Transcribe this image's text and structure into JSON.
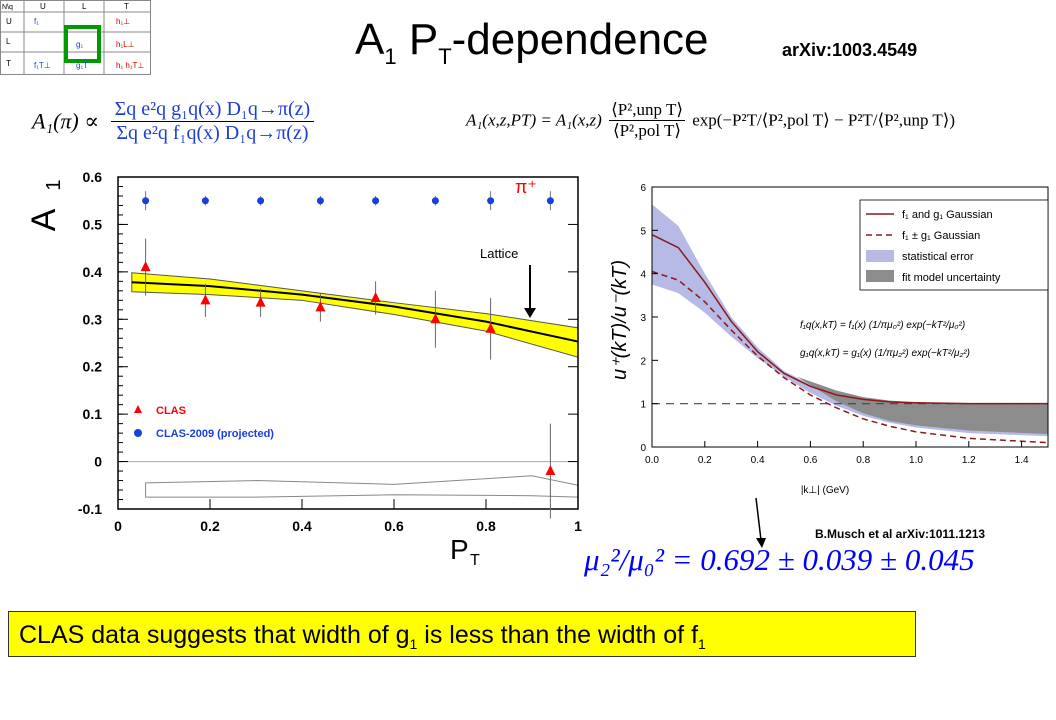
{
  "header": {
    "title_main": "A",
    "title_sub1": "1",
    "title_p": " P",
    "title_sub2": "T",
    "title_rest": "-dependence",
    "arxiv": "arXiv:1003.4549"
  },
  "tmd_grid": {
    "cols": [
      "U",
      "L",
      "T"
    ],
    "rows": [
      "U",
      "L",
      "T"
    ],
    "corner": "N\\q",
    "cells": [
      [
        "f₁",
        "",
        "h₁⊥"
      ],
      [
        "",
        "g₁",
        "h₁L⊥"
      ],
      [
        "f₁T⊥",
        "g₁T",
        "h₁ h₁T⊥"
      ]
    ],
    "highlight_color": "#009900"
  },
  "formulas": {
    "a1_lhs": "A₁(π) ∝",
    "a1_num": "Σq e²q g₁q(x) D₁q→π(z)",
    "a1_den": "Σq e²q f₁q(x) D₁q→π(z)",
    "pt_lhs": "A₁(x,z,PT) = A₁(x,z)",
    "pt_num": "⟨P²,unp T⟩",
    "pt_den": "⟨P²,pol T⟩",
    "pt_exp": "exp(−P²T/⟨P²,pol T⟩ − P²T/⟨P²,unp T⟩)"
  },
  "left_chart_text": {
    "ylabel_main": "A",
    "ylabel_sub": "1",
    "xlabel_main": "P",
    "xlabel_sub": "T",
    "pion": "π⁺",
    "lattice": "Lattice"
  },
  "right_chart_text": {
    "ylabel": "u⁺(kT)/u⁻(kT)",
    "xlabel": "|k⊥| (GeV)",
    "legend": [
      "f₁ and g₁ Gaussian",
      "f₁ ± g₁ Gaussian",
      "statistical error",
      "fit model uncertainty"
    ],
    "eq1": "f₁q(x,kT) = f₁(x) (1/πμ₀²) exp(−kT²/μ₀²)",
    "eq2": "g₁q(x,kT) = g₁(x) (1/πμ₂²) exp(−kT²/μ₂²)",
    "citation": "B.Musch et al arXiv:1011.1213",
    "ratio": "μ₂²/μ₀² = 0.692 ± 0.039 ± 0.045"
  },
  "conclusion": {
    "text1": "CLAS data suggests that width of g",
    "sub1": "1",
    "text2": " is less than the width of f",
    "sub2": "1"
  },
  "colors": {
    "band_yellow": "#ffff00",
    "clas_red": "#ff0000",
    "projected_blue": "#1a3fe0",
    "lattice_band": "#8f92d8",
    "model_gray": "#8c8c8c",
    "dark_red": "#8b1a1a",
    "ratio_blue": "#0000ff"
  },
  "chart_data": [
    {
      "type": "scatter",
      "xlim": [
        0,
        1
      ],
      "ylim": [
        -0.1,
        0.6
      ],
      "xticks": [
        "0",
        "0.2",
        "0.4",
        "0.6",
        "0.8",
        "1"
      ],
      "yticks": [
        "-0.1",
        "0",
        "0.1",
        "0.2",
        "0.3",
        "0.4",
        "0.5",
        "0.6"
      ],
      "legend_position": "lower-left",
      "series": [
        {
          "name": "CLAS",
          "x": [
            0.06,
            0.19,
            0.31,
            0.44,
            0.56,
            0.69,
            0.81,
            0.94
          ],
          "y": [
            0.41,
            0.34,
            0.335,
            0.325,
            0.345,
            0.3,
            0.28,
            -0.02
          ],
          "err": [
            0.06,
            0.035,
            0.03,
            0.03,
            0.035,
            0.06,
            0.065,
            0.1
          ]
        },
        {
          "name": "CLAS-2009 (projected)",
          "x": [
            0.06,
            0.19,
            0.31,
            0.44,
            0.56,
            0.69,
            0.81,
            0.94
          ],
          "y": [
            0.55,
            0.55,
            0.55,
            0.55,
            0.55,
            0.55,
            0.55,
            0.55
          ],
          "err": [
            0.02,
            0.01,
            0.01,
            0.01,
            0.01,
            0.01,
            0.02,
            0.02
          ]
        }
      ],
      "curve": {
        "x": [
          0.03,
          0.2,
          0.4,
          0.6,
          0.8,
          1.0
        ],
        "y": [
          0.378,
          0.37,
          0.352,
          0.327,
          0.295,
          0.253
        ]
      },
      "band": {
        "x": [
          0.03,
          0.2,
          0.4,
          0.6,
          0.8,
          1.0
        ],
        "upper": [
          0.398,
          0.385,
          0.36,
          0.335,
          0.312,
          0.282
        ],
        "lower": [
          0.358,
          0.352,
          0.34,
          0.31,
          0.275,
          0.22
        ]
      },
      "systematic": {
        "x": [
          0.06,
          0.3,
          0.6,
          0.9,
          1.0
        ],
        "upper": [
          -0.045,
          -0.04,
          -0.048,
          -0.03,
          -0.05
        ],
        "lower": [
          -0.075,
          -0.075,
          -0.07,
          -0.072,
          -0.075
        ]
      }
    },
    {
      "type": "line",
      "xlim": [
        0,
        1.5
      ],
      "ylim": [
        0,
        6
      ],
      "xticks": [
        "0.0",
        "0.2",
        "0.4",
        "0.6",
        "0.8",
        "1.0",
        "1.2",
        "1.4"
      ],
      "yticks": [
        "0",
        "1",
        "2",
        "3",
        "4",
        "5",
        "6"
      ],
      "legend_position": "top-right",
      "series": [
        {
          "name": "f₁ and g₁ Gaussian",
          "x": [
            0,
            0.1,
            0.2,
            0.3,
            0.4,
            0.5,
            0.6,
            0.7,
            0.8,
            0.9,
            1.0,
            1.2,
            1.5
          ],
          "y": [
            4.9,
            4.6,
            3.8,
            2.9,
            2.2,
            1.7,
            1.4,
            1.2,
            1.1,
            1.04,
            1.02,
            1.0,
            1.0
          ]
        },
        {
          "name": "f₁ ± g₁ Gaussian",
          "x": [
            0,
            0.1,
            0.2,
            0.3,
            0.4,
            0.5,
            0.6,
            0.7,
            0.8,
            0.9,
            1.0,
            1.2,
            1.5
          ],
          "y": [
            4.05,
            3.85,
            3.35,
            2.7,
            2.1,
            1.6,
            1.2,
            0.9,
            0.65,
            0.48,
            0.35,
            0.2,
            0.1
          ]
        },
        {
          "name": "baseline",
          "x": [
            0,
            1.5
          ],
          "y": [
            1,
            1
          ]
        }
      ],
      "band": {
        "x": [
          0,
          0.1,
          0.2,
          0.3,
          0.4,
          0.5,
          0.6,
          0.7,
          0.8,
          0.9,
          1.0,
          1.2,
          1.5
        ],
        "upper": [
          5.6,
          5.1,
          4.0,
          3.0,
          2.3,
          1.75,
          1.45,
          1.25,
          1.13,
          1.07,
          1.03,
          1.01,
          1.0
        ],
        "lower": [
          3.75,
          3.55,
          3.1,
          2.55,
          2.05,
          1.62,
          1.25,
          0.95,
          0.72,
          0.56,
          0.45,
          0.32,
          0.25
        ]
      },
      "fit_region": {
        "x": [
          0.55,
          0.7,
          0.8,
          0.9,
          1.0,
          1.2,
          1.5
        ],
        "upper": [
          1.62,
          1.3,
          1.15,
          1.07,
          1.03,
          1.01,
          1.0
        ],
        "lower": [
          1.62,
          1.05,
          0.78,
          0.6,
          0.5,
          0.38,
          0.3
        ]
      }
    }
  ]
}
